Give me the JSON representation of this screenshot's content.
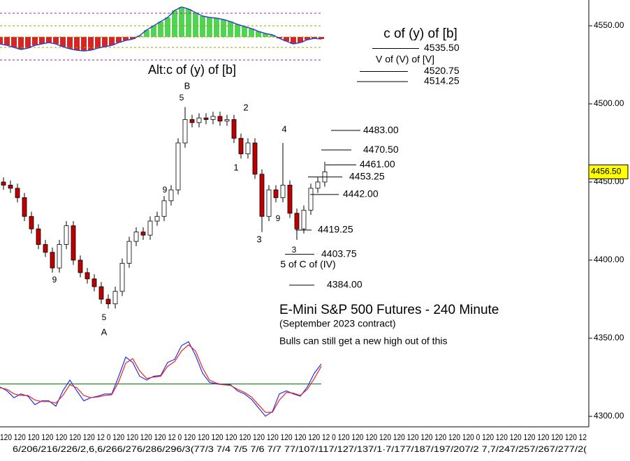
{
  "chart_data": [
    {
      "type": "candlestick",
      "title": "E-Mini S&P 500 Futures - 240 Minute",
      "subtitle": "(September 2023 contract)",
      "note": "Bulls can still get a new high out of this",
      "open": [
        4450,
        4448,
        4446,
        4440,
        4428,
        4420,
        4410,
        4405,
        4395,
        4410,
        4422,
        4400,
        4392,
        4388,
        4383,
        4375,
        4372,
        4380,
        4398,
        4412,
        4418,
        4416,
        4425,
        4428,
        4438,
        4445,
        4475,
        4490,
        4488,
        4491,
        4490,
        4492,
        4489,
        4490,
        4478,
        4468,
        4475,
        4455,
        4428,
        4445,
        4440,
        4448,
        4430,
        4420,
        4432,
        4446,
        4450
      ],
      "high": [
        4453,
        4451,
        4449,
        4443,
        4431,
        4423,
        4413,
        4408,
        4413,
        4425,
        4425,
        4403,
        4395,
        4391,
        4386,
        4378,
        4383,
        4401,
        4415,
        4421,
        4421,
        4428,
        4431,
        4441,
        4448,
        4478,
        4498,
        4493,
        4494,
        4494,
        4495,
        4495,
        4493,
        4493,
        4481,
        4478,
        4478,
        4458,
        4448,
        4448,
        4475,
        4451,
        4433,
        4435,
        4449,
        4453,
        4463
      ],
      "low": [
        4445,
        4443,
        4437,
        4425,
        4417,
        4407,
        4402,
        4392,
        4392,
        4407,
        4397,
        4389,
        4385,
        4380,
        4372,
        4369,
        4369,
        4377,
        4395,
        4409,
        4413,
        4413,
        4422,
        4425,
        4435,
        4442,
        4472,
        4485,
        4485,
        4487,
        4487,
        4486,
        4486,
        4475,
        4465,
        4465,
        4452,
        4418,
        4425,
        4437,
        4437,
        4427,
        4413,
        4417,
        4429,
        4443,
        4447
      ],
      "close": [
        4448,
        4446,
        4440,
        4428,
        4420,
        4410,
        4405,
        4395,
        4410,
        4422,
        4400,
        4392,
        4388,
        4383,
        4375,
        4372,
        4380,
        4398,
        4412,
        4418,
        4416,
        4425,
        4428,
        4438,
        4445,
        4475,
        4490,
        4488,
        4491,
        4490,
        4492,
        4489,
        4490,
        4478,
        4468,
        4475,
        4455,
        4428,
        4445,
        4440,
        4448,
        4430,
        4420,
        4432,
        4446,
        4450,
        4456.5
      ],
      "up_color": "#ffffff",
      "down_color": "#c00000",
      "ylim": [
        4293.3,
        4566.5
      ],
      "yticks": [
        {
          "value": 4300,
          "label": "4300.00"
        },
        {
          "value": 4350,
          "label": "4350.00"
        },
        {
          "value": 4400,
          "label": "4400.00"
        },
        {
          "value": 4450,
          "label": "4450.00"
        },
        {
          "value": 4500,
          "label": "4500.00"
        },
        {
          "value": 4550,
          "label": "4550.00"
        }
      ],
      "last_price": {
        "value": 4456.5,
        "label": "4456.50"
      },
      "levels": [
        {
          "value": 4535.5,
          "label": "4535.50"
        },
        {
          "value": 4520.75,
          "label": "4520.75"
        },
        {
          "value": 4514.25,
          "label": "4514.25"
        },
        {
          "value": 4483,
          "label": "4483.00"
        },
        {
          "value": 4470.5,
          "label": "4470.50"
        },
        {
          "value": 4461,
          "label": "4461.00"
        },
        {
          "value": 4453.25,
          "label": "4453.25"
        },
        {
          "value": 4442,
          "label": "4442.00"
        },
        {
          "value": 4419.25,
          "label": "4419.25"
        },
        {
          "value": 4403.75,
          "label": "4403.75"
        },
        {
          "value": 4384,
          "label": "4384.00"
        }
      ],
      "annotations": [
        "c of (y) of [b]",
        "V of (V) of [V]",
        "Alt:c of (y) of [b]",
        "B",
        "5",
        "2",
        "1",
        "4",
        "3",
        "9",
        "3",
        "5 of C of (IV)",
        "9",
        "9",
        "5",
        "A"
      ],
      "x_labels": [
        "120 120 120 120 120 120 120 12 0 120 120 120 120 12 0 120 120 120 120 120 120 120 120 120 120 12 0 120 120 120 120 120 120 120 120 120 120 0 120 120 120 120 120 120 120 12",
        "6/206/216/226/2,6,6/266/276/286/296/3(77/3   7/4   7/5   7/6   7/7 77/107/117/127/137/1·7/177/187/197/207/2 7,7/247/257/267/277/2("
      ]
    },
    {
      "type": "oscillator",
      "values": [
        -10,
        -12,
        -15,
        -18,
        -16,
        -12,
        -10,
        -8,
        -10,
        -14,
        -17,
        -19,
        -20,
        -19,
        -16,
        -14,
        -12,
        -8,
        -5,
        -3,
        2,
        10,
        16,
        22,
        28,
        38,
        43,
        40,
        35,
        30,
        28,
        27,
        25,
        22,
        18,
        15,
        12,
        8,
        5,
        3,
        -2,
        -6,
        -10,
        -8,
        -4,
        -2,
        -3
      ],
      "ylim": [
        -53,
        53
      ],
      "levels": [
        34,
        16,
        0,
        -15,
        -33
      ],
      "level_colors": [
        "#a020a0",
        "#a0a000",
        "#a0a000",
        "#a0a000",
        "#a020a0"
      ],
      "pos_color": "#33cc33",
      "neg_color": "#cc0000",
      "line_color": "#3344cc"
    },
    {
      "type": "line",
      "series": [
        {
          "color": "#2233ee",
          "values": [
            41,
            36,
            27,
            32,
            29,
            18,
            23,
            23,
            16,
            36,
            50,
            36,
            23,
            27,
            29,
            32,
            32,
            55,
            80,
            73,
            55,
            50,
            55,
            56,
            73,
            77,
            95,
            100,
            82,
            59,
            47,
            45,
            44,
            44,
            36,
            32,
            25,
            14,
            3,
            9,
            32,
            36,
            32,
            29,
            41,
            59,
            71
          ]
        },
        {
          "color": "#ee2222",
          "values": [
            40,
            38,
            32,
            30,
            30,
            24,
            22,
            22,
            20,
            30,
            44,
            40,
            30,
            27,
            28,
            30,
            31,
            48,
            72,
            78,
            62,
            52,
            54,
            55,
            68,
            74,
            88,
            96,
            88,
            66,
            50,
            46,
            44,
            43,
            38,
            34,
            28,
            18,
            8,
            8,
            24,
            34,
            33,
            30,
            38,
            52,
            68
          ]
        }
      ],
      "ylim": [
        0,
        100
      ],
      "level": 45,
      "level_color": "#008000"
    }
  ]
}
